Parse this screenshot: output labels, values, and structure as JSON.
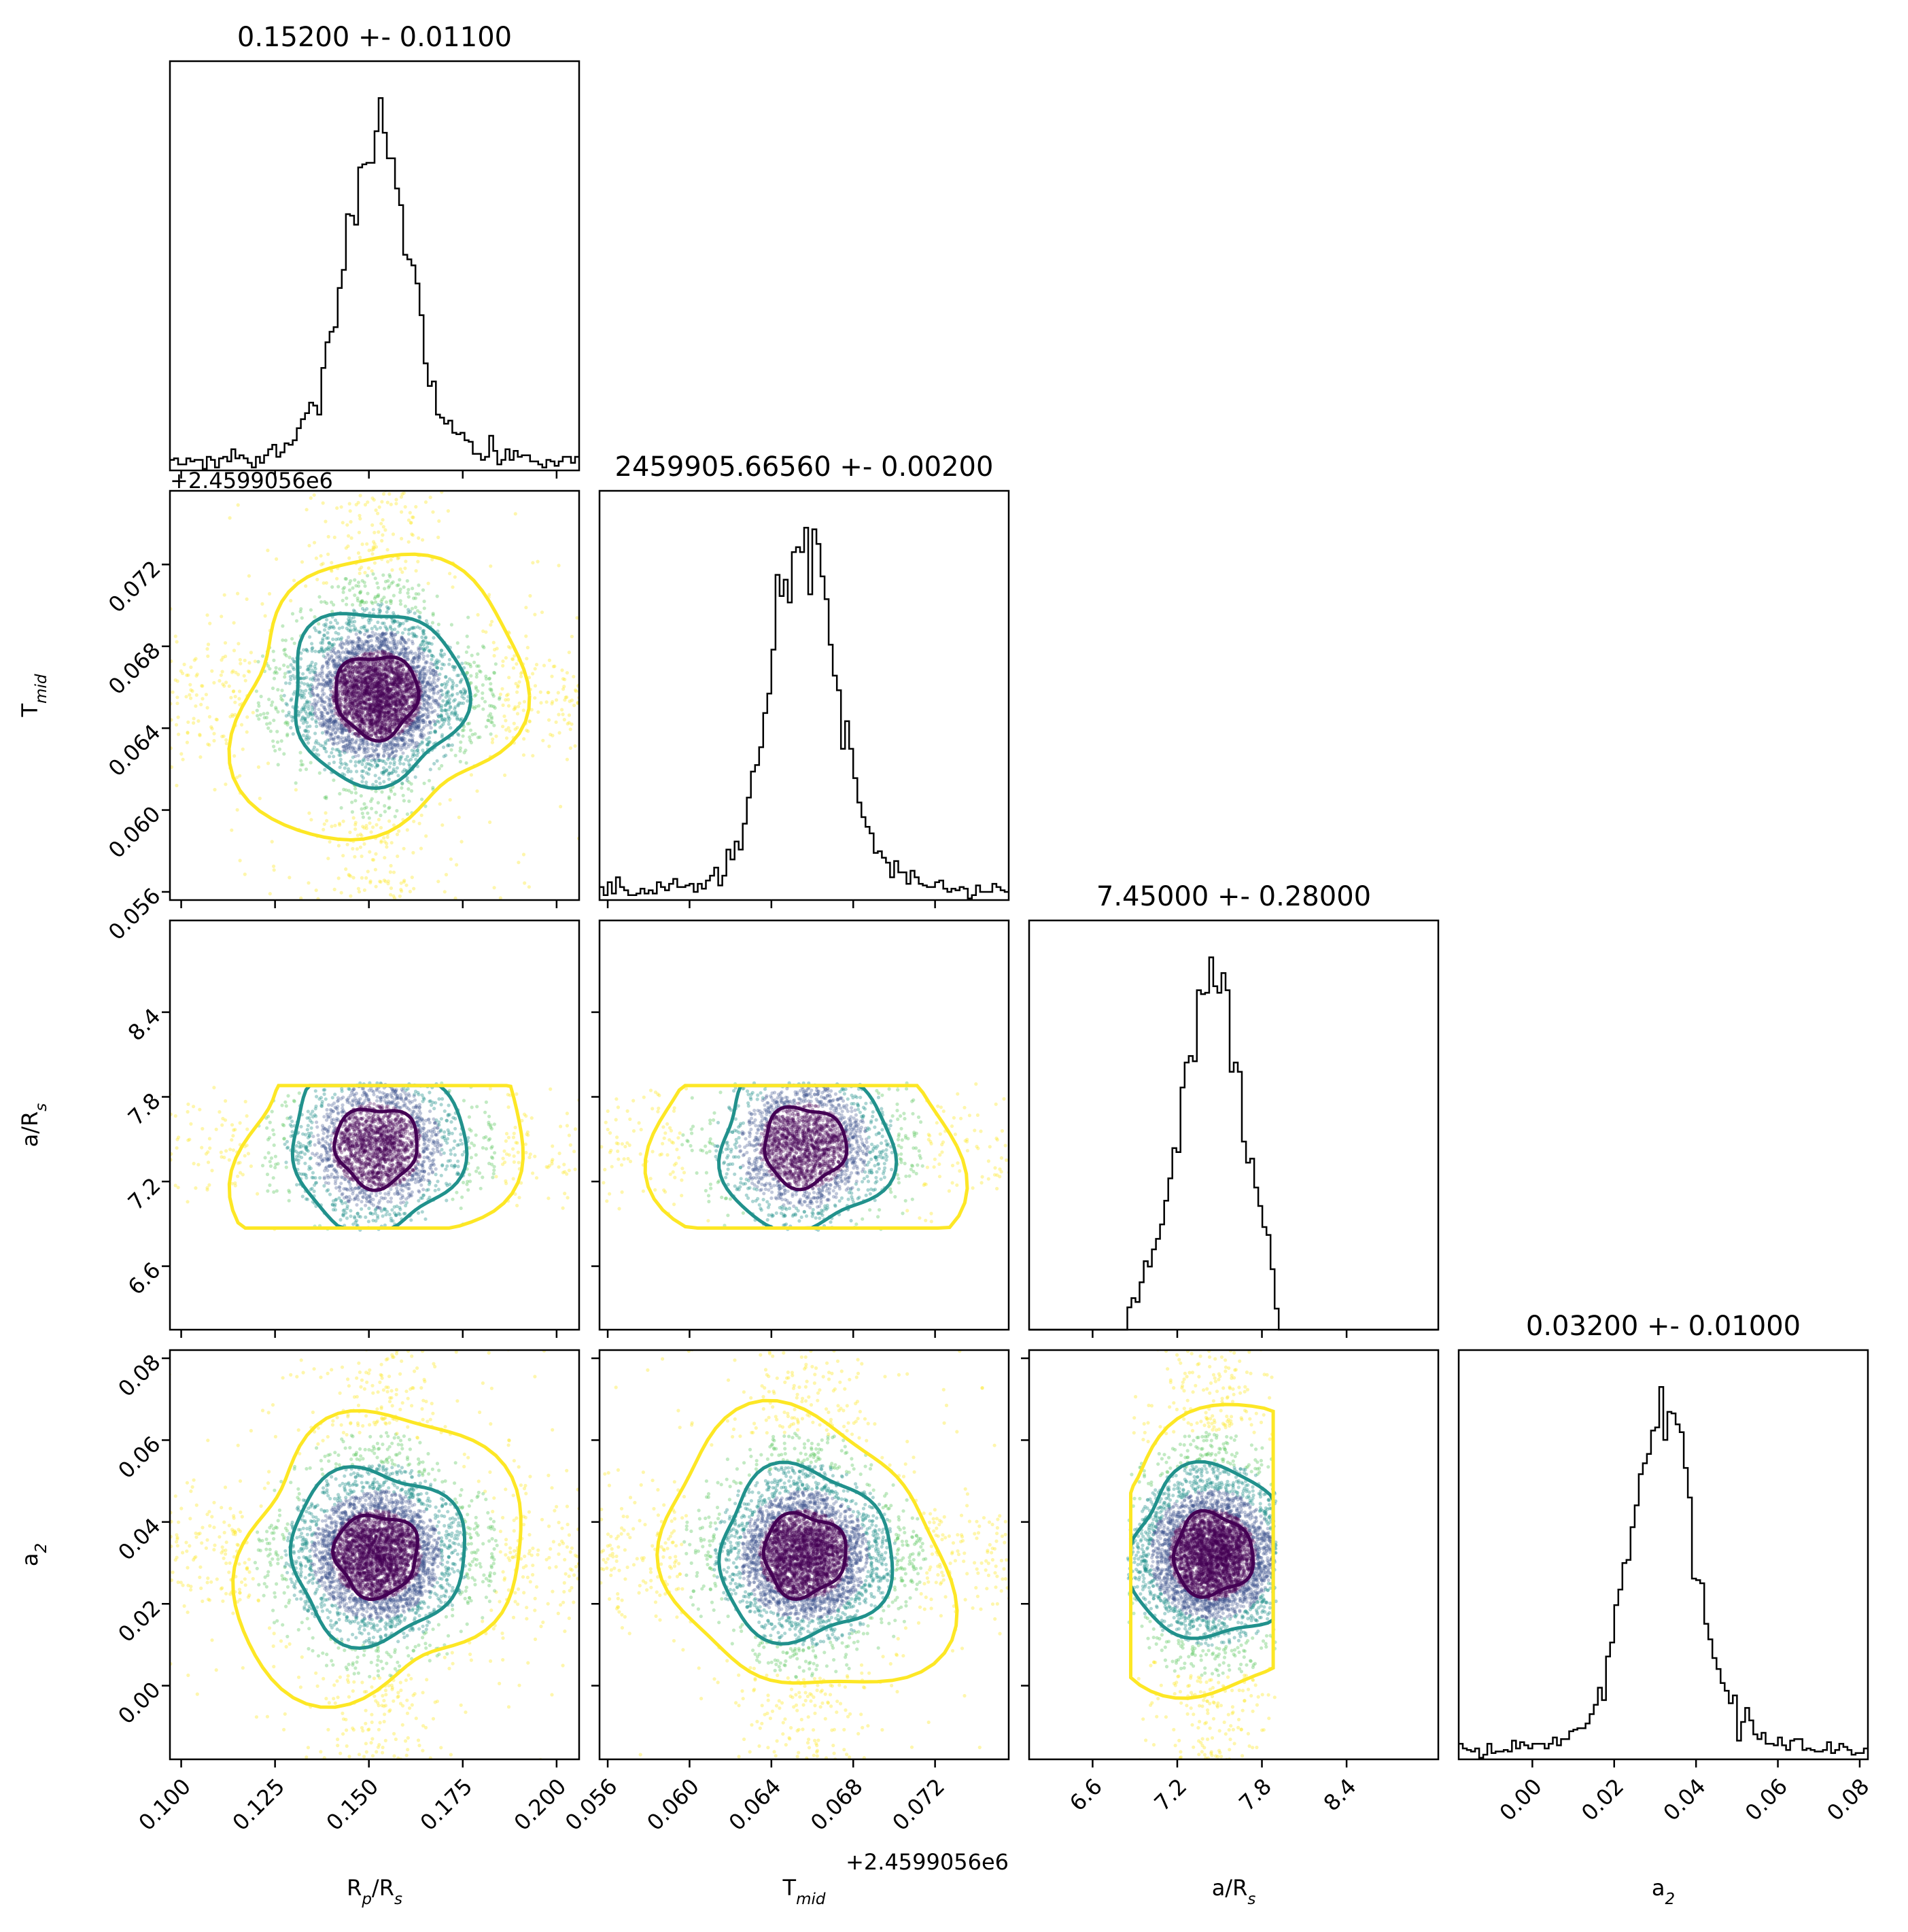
{
  "chart_data": {
    "type": "corner",
    "parameters": [
      {
        "key": "rp",
        "label_main": "R",
        "label_sub": "p",
        "label_tail": "/R",
        "label_sub2": "s",
        "title": "0.15200 +- 0.01100",
        "mean": 0.152,
        "std": 0.011,
        "range": [
          0.097,
          0.206
        ],
        "ticks": [
          0.1,
          0.125,
          0.15,
          0.175,
          0.2
        ],
        "tick_labels": [
          "0.100",
          "0.125",
          "0.150",
          "0.175",
          "0.200"
        ],
        "offset": ""
      },
      {
        "key": "tmid",
        "label_main": "T",
        "label_sub": "mid",
        "label_tail": "",
        "label_sub2": "",
        "title": "2459905.66560 +- 0.00200",
        "mean": 0.0656,
        "std": 0.002,
        "range": [
          0.0556,
          0.0756
        ],
        "ticks": [
          0.056,
          0.06,
          0.064,
          0.068,
          0.072
        ],
        "tick_labels": [
          "0.056",
          "0.060",
          "0.064",
          "0.068",
          "0.072"
        ],
        "offset": "+2.4599056e6"
      },
      {
        "key": "ars",
        "label_main": "a/R",
        "label_sub": "s",
        "label_tail": "",
        "label_sub2": "",
        "title": "7.45000 +- 0.28000",
        "mean": 7.45,
        "std": 0.28,
        "range": [
          6.15,
          9.05
        ],
        "ticks": [
          6.6,
          7.2,
          7.8,
          8.4
        ],
        "tick_labels": [
          "6.6",
          "7.2",
          "7.8",
          "8.4"
        ],
        "offset": "",
        "prior_bounds": [
          6.85,
          7.9
        ]
      },
      {
        "key": "a2",
        "label_main": "a",
        "label_sub": "2",
        "label_tail": "",
        "label_sub2": "",
        "title": "0.03200 +- 0.01000",
        "mean": 0.032,
        "std": 0.01,
        "range": [
          -0.018,
          0.082
        ],
        "ticks": [
          0.0,
          0.02,
          0.04,
          0.06,
          0.08
        ],
        "tick_labels": [
          "0.00",
          "0.02",
          "0.04",
          "0.06",
          "0.08"
        ],
        "offset": ""
      }
    ],
    "contour_colors": [
      "#440154",
      "#21918c",
      "#fde725"
    ],
    "scatter_colors": [
      "#440154",
      "#3b528b",
      "#21918c",
      "#5ec962",
      "#fde725"
    ]
  }
}
